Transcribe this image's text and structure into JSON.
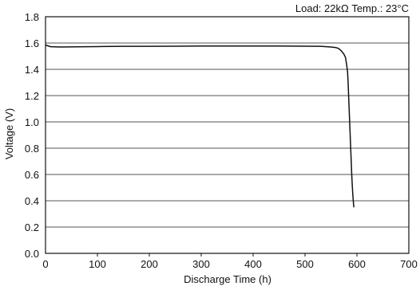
{
  "chart_data": {
    "type": "line",
    "annotation": "Load: 22kΩ   Temp.: 23°C",
    "xlabel": "Discharge Time (h)",
    "ylabel": "Voltage (V)",
    "xlim": [
      0,
      700
    ],
    "ylim": [
      0,
      1.8
    ],
    "x_ticks": [
      "0",
      "100",
      "200",
      "300",
      "400",
      "500",
      "600",
      "700"
    ],
    "y_ticks": [
      "0.0",
      "0.2",
      "0.4",
      "0.6",
      "0.8",
      "1.0",
      "1.2",
      "1.4",
      "1.6",
      "1.8"
    ],
    "grid": "horizontal",
    "legend": "none",
    "colors": {
      "line": "#111111",
      "grid": "#555555",
      "axis": "#111111",
      "background": "#ffffff"
    },
    "series": [
      {
        "x": [
          0,
          10,
          30,
          60,
          100,
          150,
          200,
          250,
          300,
          350,
          400,
          450,
          500,
          530,
          550,
          560,
          565,
          570,
          575,
          578,
          580,
          582,
          583,
          584,
          585,
          586,
          587,
          588,
          589,
          590,
          591,
          592,
          593,
          594
        ],
        "y": [
          1.585,
          1.572,
          1.57,
          1.571,
          1.573,
          1.575,
          1.575,
          1.576,
          1.577,
          1.577,
          1.577,
          1.577,
          1.576,
          1.575,
          1.57,
          1.565,
          1.558,
          1.54,
          1.515,
          1.49,
          1.44,
          1.38,
          1.3,
          1.2,
          1.1,
          1.0,
          0.9,
          0.8,
          0.7,
          0.6,
          0.52,
          0.45,
          0.4,
          0.35
        ]
      }
    ]
  }
}
